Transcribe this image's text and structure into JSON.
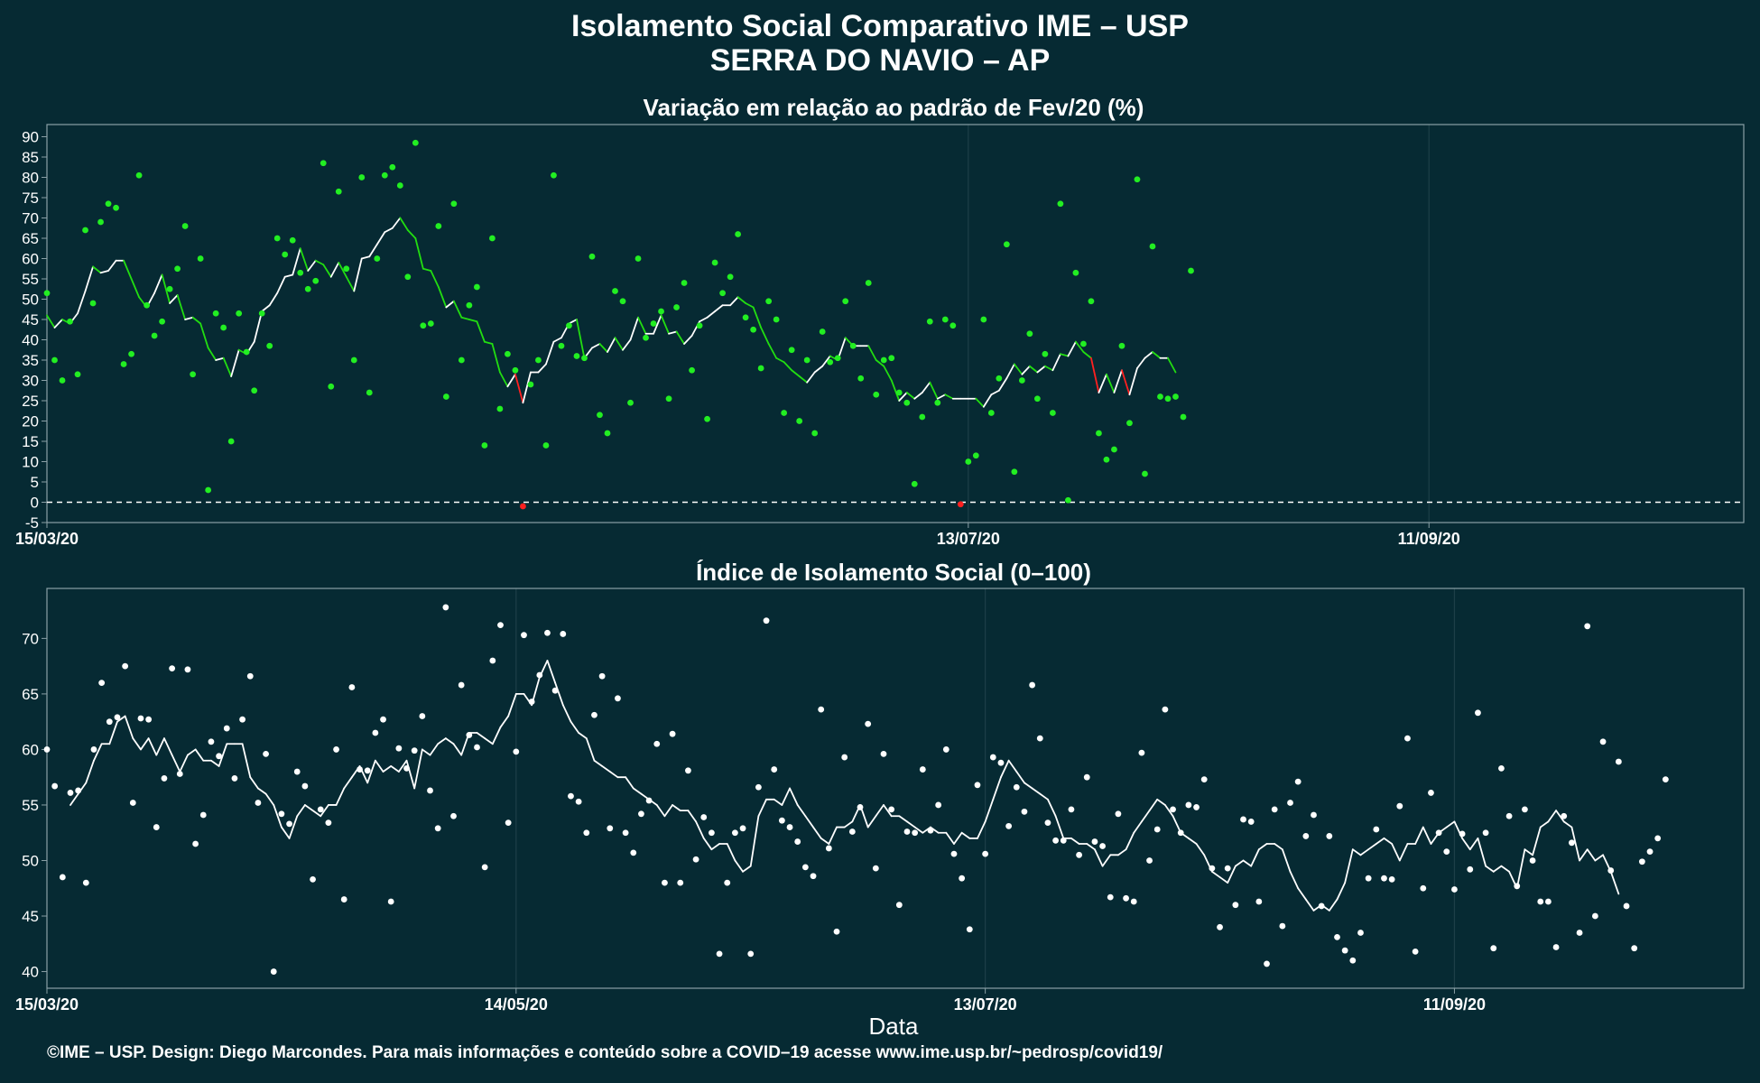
{
  "header": {
    "title_line1": "Isolamento Social Comparativo IME – USP",
    "title_line2": "SERRA DO NAVIO – AP"
  },
  "colors": {
    "background": "#062a33",
    "line_white": "#ffffff",
    "line_green": "#22dd11",
    "line_red": "#ff2020",
    "points_green": "#22ee22",
    "points_red": "#ff2020",
    "points_white": "#ffffff"
  },
  "footer": {
    "xlabel": "Data",
    "caption": "©IME – USP. Design: Diego Marcondes. Para mais informações e conteúdo sobre a COVID–19 acesse www.ime.usp.br/~pedrosp/covid19/"
  },
  "chart_data": [
    {
      "type": "line",
      "title": "Variação em relação ao padrão de Fev/20 (%)",
      "xlabel": "",
      "ylabel": "",
      "x_start_date": "15/03/20",
      "x_tick_labels": [
        "15/03/20",
        "13/07/20",
        "11/09/20"
      ],
      "x_tick_days": [
        0,
        120,
        180
      ],
      "xlim_days": [
        0,
        221
      ],
      "ylim": [
        -5,
        93
      ],
      "y_ticks": [
        -5,
        0,
        5,
        10,
        15,
        20,
        25,
        30,
        35,
        40,
        45,
        50,
        55,
        60,
        65,
        70,
        75,
        80,
        85,
        90
      ],
      "reference_line": 0,
      "grid": true,
      "legend": "none",
      "series": [
        {
          "name": "",
          "kind": "daily points",
          "values": [
            51.5,
            35,
            30,
            44.5,
            31.5,
            67,
            49,
            69,
            73.5,
            72.5,
            34,
            36.5,
            80.5,
            48.5,
            41,
            44.5,
            52.5,
            57.5,
            68,
            31.5,
            60,
            3,
            46.5,
            43,
            15,
            46.5,
            37,
            27.5,
            46.5,
            38.5,
            65,
            61,
            64.5,
            56.5,
            52.5,
            54.5,
            83.5,
            28.5,
            76.5,
            57.5,
            35,
            80,
            27,
            60,
            80.5,
            82.5,
            78,
            55.5,
            88.5,
            43.5,
            44,
            68,
            26,
            73.5,
            35,
            48.5,
            53,
            14,
            65,
            23,
            36.5,
            32.5,
            -1,
            29,
            35,
            14,
            80.5,
            38.5,
            43.5,
            36,
            35.5,
            60.5,
            21.5,
            17,
            52,
            49.5,
            24.5,
            60,
            40.5,
            44,
            47,
            25.5,
            48,
            54,
            32.5,
            43.5,
            20.5,
            59,
            51.5,
            55.5,
            66,
            45.5,
            42.5,
            33,
            49.5,
            45,
            22,
            37.5,
            20,
            35,
            17,
            42,
            34.5,
            35.5,
            49.5,
            38.5,
            30.5,
            54,
            26.5,
            35,
            35.5,
            27,
            24.5,
            4.5,
            21,
            44.5,
            24.5,
            45,
            43.5,
            -0.5,
            10,
            11.5,
            45,
            22,
            30.5,
            63.5,
            7.5,
            30,
            41.5,
            25.5,
            36.5,
            22,
            73.5,
            0.5,
            56.5,
            39,
            49.5,
            17,
            10.5,
            13,
            38.5,
            19.5,
            79.5,
            7,
            63,
            26,
            25.5,
            26,
            21,
            57
          ]
        },
        {
          "name": "",
          "kind": "7-day moving average",
          "start_day": 0,
          "values": [
            46,
            43,
            45,
            44,
            46.5,
            52,
            58,
            56.5,
            57,
            59.5,
            59.5,
            55,
            50.5,
            48,
            51.5,
            56,
            49,
            51,
            45,
            45.5,
            44,
            38,
            35,
            35.5,
            31,
            37.5,
            36.5,
            39.5,
            47,
            48.5,
            51.5,
            55.5,
            56,
            62.5,
            57,
            59.5,
            58.5,
            55.5,
            59,
            55.5,
            52,
            60,
            60.5,
            63.5,
            66.5,
            67.5,
            70,
            67,
            65,
            57.5,
            57,
            53,
            48,
            49.5,
            45.5,
            45,
            44.5,
            39.5,
            39,
            32,
            28.5,
            31.5,
            24.5,
            32,
            32,
            34,
            39.5,
            40.5,
            44,
            45,
            35.5,
            38,
            39,
            37,
            40.5,
            37.5,
            40,
            45.5,
            41.5,
            41.5,
            46,
            41.5,
            42,
            39,
            41,
            44.5,
            45.5,
            47,
            48.5,
            48.5,
            50.5,
            49,
            48,
            43,
            39,
            35.5,
            34.5,
            32.5,
            31,
            29.5,
            32,
            33.5,
            36,
            35,
            40.5,
            38.5,
            38.5,
            38.5,
            35,
            33.5,
            30,
            25,
            27,
            25.5,
            27,
            29.5,
            25.5,
            26.5,
            25.5,
            25.5,
            25.5,
            25.5,
            23.5,
            26.5,
            27.5,
            30.5,
            34,
            31.5,
            33.5,
            32,
            33.5,
            32.5,
            36.5,
            36,
            39.5,
            37,
            35.5,
            27,
            31.5,
            27,
            32.5,
            26.5,
            33,
            35.5,
            37,
            35.5,
            35.5,
            32
          ]
        }
      ]
    },
    {
      "type": "line",
      "title": "Índice de Isolamento Social (0–100)",
      "xlabel": "Data",
      "ylabel": "",
      "x_start_date": "15/03/20",
      "x_tick_labels": [
        "15/03/20",
        "14/05/20",
        "13/07/20",
        "11/09/20"
      ],
      "x_tick_days": [
        0,
        60,
        120,
        180
      ],
      "xlim_days": [
        0,
        217
      ],
      "ylim": [
        38.5,
        74.5
      ],
      "y_ticks": [
        40,
        45,
        50,
        55,
        60,
        65,
        70
      ],
      "grid": true,
      "legend": "none",
      "series": [
        {
          "name": "",
          "kind": "daily points",
          "values": [
            60,
            56.7,
            48.5,
            56.1,
            56.3,
            48,
            60,
            66,
            62.5,
            62.9,
            67.5,
            55.2,
            62.8,
            62.7,
            53,
            57.4,
            67.3,
            57.8,
            67.2,
            51.5,
            54.1,
            60.7,
            59.4,
            61.9,
            57.4,
            62.7,
            66.6,
            55.2,
            59.6,
            40,
            54.2,
            53.3,
            58,
            56.7,
            48.3,
            54.6,
            53.4,
            60,
            46.5,
            65.6,
            58.2,
            58.1,
            61.5,
            62.7,
            46.3,
            60.1,
            58.3,
            59.9,
            63,
            56.3,
            52.9,
            72.8,
            54,
            65.8,
            61.3,
            60.2,
            49.4,
            68,
            71.2,
            53.4,
            59.8,
            70.3,
            64.3,
            66.7,
            70.5,
            65.3,
            70.4,
            55.8,
            55.3,
            52.5,
            63.1,
            66.6,
            52.9,
            64.6,
            52.5,
            50.7,
            54.2,
            55.4,
            60.5,
            48,
            61.4,
            48,
            58.1,
            50.1,
            53.9,
            52.5,
            41.6,
            48,
            52.5,
            52.9,
            41.6,
            56.6,
            71.6,
            58.2,
            53.6,
            53,
            51.7,
            49.4,
            48.6,
            63.6,
            51.1,
            43.6,
            59.3,
            52.6,
            54.8,
            62.3,
            49.3,
            59.6,
            54.6,
            46,
            52.6,
            52.5,
            58.2,
            52.7,
            55,
            60,
            50.6,
            48.4,
            43.8,
            56.8,
            50.6,
            59.3,
            58.8,
            53.1,
            56.6,
            54.4,
            65.8,
            61,
            53.4,
            51.8,
            51.8,
            54.6,
            50.5,
            57.5,
            51.7,
            51.3,
            46.7,
            54.2,
            46.6,
            46.3,
            59.7,
            50,
            52.8,
            63.6,
            54.6,
            52.5,
            55,
            54.8,
            57.3,
            49.3,
            44,
            49.3,
            46,
            53.7,
            53.5,
            46.3,
            40.7,
            54.6,
            44.1,
            55.2,
            57.1,
            52.2,
            54.1,
            45.9,
            52.2,
            43.1,
            41.9,
            41,
            43.5,
            48.4,
            52.8,
            48.4,
            48.3,
            54.9,
            61,
            41.8,
            47.5,
            56.1,
            52.5,
            50.8,
            47.4,
            52.4,
            49.2,
            63.3,
            52.5,
            42.1,
            58.3,
            54,
            47.7,
            54.6,
            50,
            46.3,
            46.3,
            42.2,
            54,
            51.6,
            43.5,
            71.1,
            45,
            60.7,
            49.1,
            58.9,
            45.9,
            42.1,
            49.9,
            50.8,
            52,
            57.3
          ]
        },
        {
          "name": "",
          "kind": "7-day moving average",
          "start_day": 3,
          "values": [
            55,
            56,
            57,
            59,
            60.5,
            60.5,
            62.5,
            63,
            61,
            60,
            61,
            59.5,
            61,
            59.5,
            58,
            59.5,
            60,
            59,
            59,
            58.5,
            60.5,
            60.5,
            60.5,
            57.5,
            56.5,
            56,
            55,
            53,
            52,
            54,
            55,
            54.5,
            54,
            55,
            55,
            56.5,
            57.5,
            58.5,
            57,
            59,
            58,
            58.5,
            58,
            59,
            56.5,
            60,
            59.5,
            60.5,
            61,
            60.5,
            59.5,
            61.5,
            61.5,
            61,
            60.5,
            62,
            63,
            65,
            65,
            64,
            66.5,
            68,
            66,
            64,
            62.5,
            61.5,
            61,
            59,
            58.5,
            58,
            57.5,
            57.5,
            56.5,
            56,
            55.5,
            55,
            54,
            55,
            54.5,
            54.5,
            53.5,
            52,
            51,
            51.5,
            51.5,
            50,
            49,
            49.5,
            54,
            55.5,
            55.5,
            55,
            56.5,
            55,
            54,
            53,
            52,
            51.5,
            53,
            53,
            53.5,
            55,
            53,
            54,
            55,
            54,
            54,
            53.5,
            53,
            52.5,
            53,
            52.5,
            52.5,
            51.5,
            52.5,
            52,
            52,
            53.5,
            55.5,
            57.5,
            59,
            58,
            57,
            56.5,
            56,
            55.5,
            54,
            52,
            52,
            51.5,
            51.5,
            51,
            49.5,
            50.5,
            50.5,
            51,
            52.5,
            53.5,
            54.5,
            55.5,
            55,
            54,
            52.5,
            52,
            51.5,
            50.5,
            49,
            48.5,
            48,
            49.5,
            50,
            49.5,
            51,
            51.5,
            51.5,
            51,
            49,
            47.5,
            46.5,
            45.5,
            46,
            45.5,
            46.5,
            48,
            51,
            50.5,
            51,
            51.5,
            52,
            51.5,
            50,
            51.5,
            51.5,
            53,
            51.5,
            52.5,
            53,
            53.5,
            52,
            51,
            52,
            49.5,
            49,
            49.5,
            49,
            47.5,
            51,
            50.5,
            53,
            53.5,
            54.5,
            53.5,
            53,
            50,
            51,
            50,
            50.5,
            49,
            47
          ]
        }
      ]
    }
  ]
}
